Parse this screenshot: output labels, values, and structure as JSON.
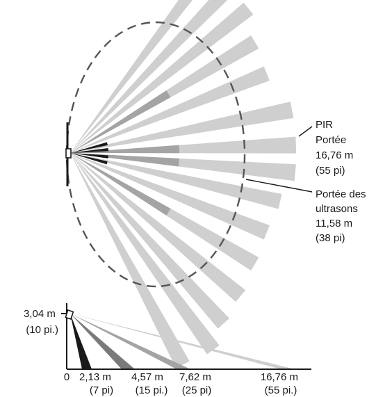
{
  "top_view": {
    "pir_label": [
      "PIR",
      "Portée",
      "16,76 m",
      "(55 pi)"
    ],
    "ultrasonic_label": [
      "Portée des",
      "ultrasons",
      "11,58 m",
      "(38 pi)"
    ]
  },
  "side_view": {
    "height_label": [
      "3,04 m",
      "(10 pi.)"
    ],
    "origin_tick": "0",
    "distance_ticks": [
      {
        "value": "2,13 m",
        "imperial": "(7 pi)"
      },
      {
        "value": "4,57 m",
        "imperial": "(15 pi.)"
      },
      {
        "value": "7,62 m",
        "imperial": "(25 pi)"
      },
      {
        "value": "16,76 m",
        "imperial": "(55 pi.)"
      }
    ]
  },
  "colors": {
    "beam_light": "#cfcfcf",
    "beam_mid": "#a4a4a4",
    "beam_dark": "#7a7a7a",
    "beam_black": "#1a1a1a",
    "ink": "#1a1a1a",
    "dashed_range": "#555555"
  }
}
